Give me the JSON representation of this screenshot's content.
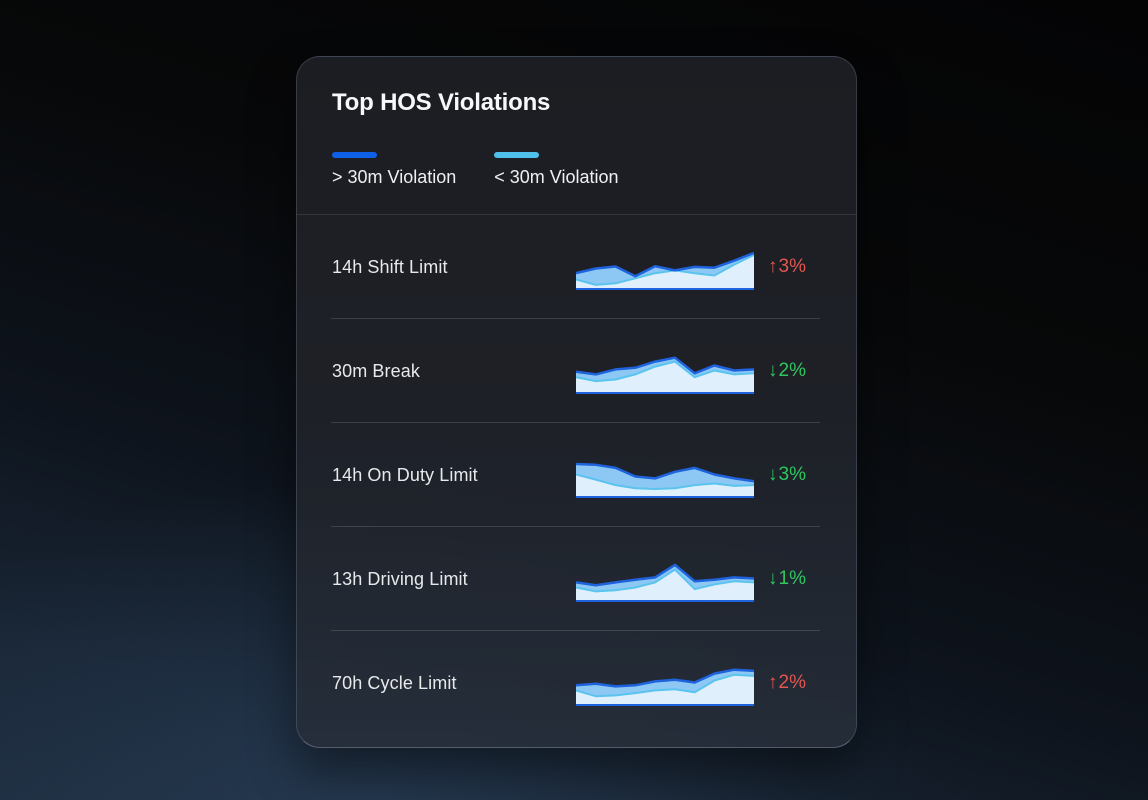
{
  "card": {
    "title": "Top HOS Violations"
  },
  "colors": {
    "legend_gt30": "#0e60e8",
    "legend_lt30": "#4fc0ea",
    "line_gt30": "#1e63dd",
    "line_lt30": "#5ac3ee",
    "fill_gt30": "#8dc8f4",
    "fill_lt30": "#dff0fc",
    "negative": "#e2574f",
    "positive": "#2fc760"
  },
  "chart_data": {
    "type": "area",
    "description": "Per-row dual-series sparklines; values are normalized violation levels 0-100 (estimated from pixels), 10 points left-to-right",
    "legend": [
      {
        "label": "> 30m Violation",
        "series_key": "gt_30m"
      },
      {
        "label": "< 30m Violation",
        "series_key": "lt_30m"
      }
    ],
    "rows": [
      {
        "label": "14h Shift Limit",
        "change": {
          "arrow": "↑",
          "value": "3%",
          "sentiment": "negative"
        },
        "series": {
          "gt_30m": [
            38,
            50,
            55,
            30,
            56,
            45,
            54,
            52,
            70,
            90
          ],
          "lt_30m": [
            22,
            8,
            12,
            25,
            38,
            45,
            38,
            32,
            60,
            85
          ]
        }
      },
      {
        "label": "30m Break",
        "change": {
          "arrow": "↓",
          "value": "2%",
          "sentiment": "positive"
        },
        "series": {
          "gt_30m": [
            52,
            45,
            58,
            62,
            78,
            88,
            48,
            68,
            55,
            58
          ],
          "lt_30m": [
            38,
            28,
            32,
            45,
            65,
            78,
            38,
            55,
            45,
            48
          ]
        }
      },
      {
        "label": "14h On Duty Limit",
        "change": {
          "arrow": "↓",
          "value": "3%",
          "sentiment": "positive"
        },
        "series": {
          "gt_30m": [
            82,
            80,
            72,
            50,
            45,
            62,
            72,
            55,
            45,
            38
          ],
          "lt_30m": [
            55,
            42,
            28,
            20,
            18,
            20,
            28,
            32,
            26,
            28
          ]
        }
      },
      {
        "label": "13h Driving Limit",
        "change": {
          "arrow": "↓",
          "value": "1%",
          "sentiment": "positive"
        },
        "series": {
          "gt_30m": [
            45,
            38,
            45,
            52,
            58,
            90,
            48,
            52,
            58,
            55
          ],
          "lt_30m": [
            32,
            22,
            25,
            32,
            45,
            78,
            28,
            40,
            48,
            45
          ]
        }
      },
      {
        "label": "70h Cycle Limit",
        "change": {
          "arrow": "↑",
          "value": "2%",
          "sentiment": "negative"
        },
        "series": {
          "gt_30m": [
            48,
            52,
            45,
            48,
            58,
            62,
            55,
            78,
            88,
            85
          ],
          "lt_30m": [
            35,
            20,
            22,
            28,
            35,
            38,
            30,
            60,
            75,
            72
          ]
        }
      }
    ]
  }
}
